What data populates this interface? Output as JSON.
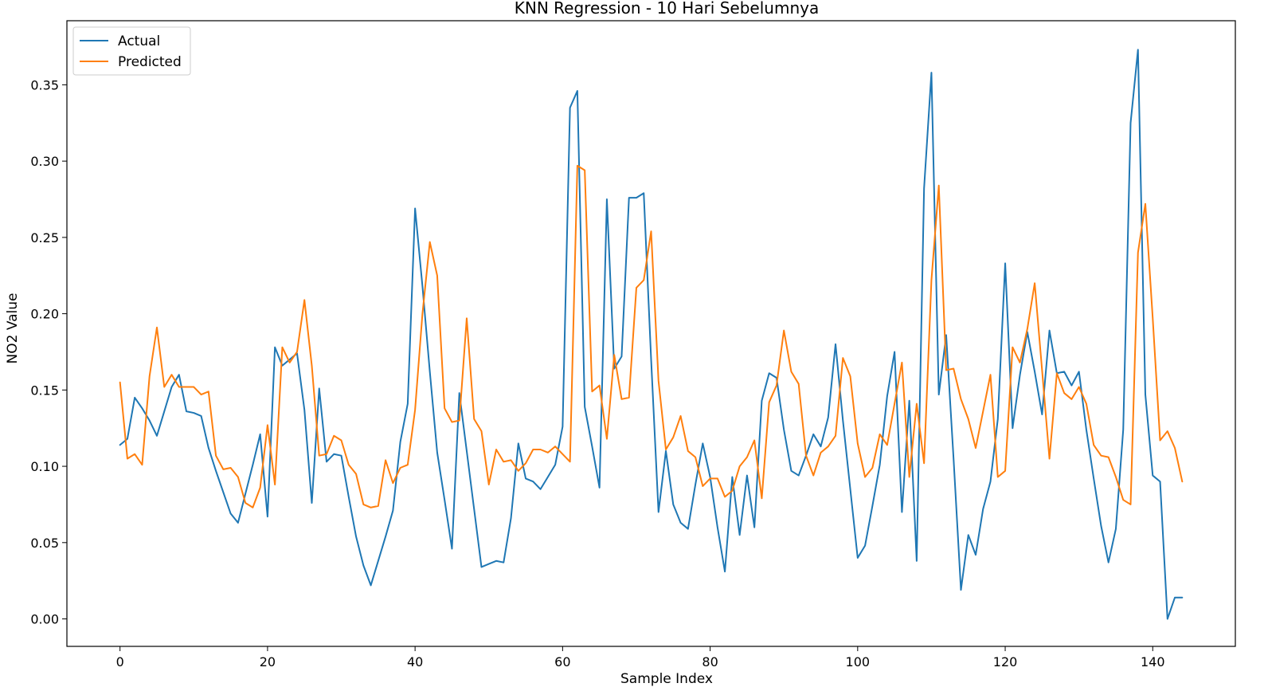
{
  "chart_data": {
    "type": "line",
    "title": "KNN Regression - 10 Hari Sebelumnya",
    "xlabel": "Sample Index",
    "ylabel": "NO2 Value",
    "xlim": [
      -7.2,
      151.2
    ],
    "ylim": [
      -0.018,
      0.392
    ],
    "xticks": [
      0,
      20,
      40,
      60,
      80,
      100,
      120,
      140
    ],
    "xtick_labels": [
      "0",
      "20",
      "40",
      "60",
      "80",
      "100",
      "120",
      "140"
    ],
    "yticks": [
      0.0,
      0.05,
      0.1,
      0.15,
      0.2,
      0.25,
      0.3,
      0.35
    ],
    "ytick_labels": [
      "0.00",
      "0.05",
      "0.10",
      "0.15",
      "0.20",
      "0.25",
      "0.30",
      "0.35"
    ],
    "grid": false,
    "legend_position": "top-left",
    "series": [
      {
        "name": "Actual",
        "color": "#1f77b4",
        "values": [
          0.114,
          0.118,
          0.145,
          0.138,
          0.13,
          0.12,
          0.136,
          0.152,
          0.16,
          0.136,
          0.135,
          0.133,
          0.112,
          0.097,
          0.083,
          0.069,
          0.063,
          0.082,
          0.101,
          0.121,
          0.067,
          0.178,
          0.166,
          0.17,
          0.174,
          0.137,
          0.076,
          0.151,
          0.103,
          0.108,
          0.107,
          0.08,
          0.054,
          0.035,
          0.022,
          0.038,
          0.054,
          0.071,
          0.116,
          0.141,
          0.269,
          0.218,
          0.162,
          0.109,
          0.078,
          0.046,
          0.148,
          0.11,
          0.072,
          0.034,
          0.036,
          0.038,
          0.037,
          0.066,
          0.115,
          0.092,
          0.09,
          0.085,
          0.093,
          0.101,
          0.126,
          0.335,
          0.346,
          0.139,
          0.113,
          0.086,
          0.275,
          0.164,
          0.172,
          0.276,
          0.276,
          0.279,
          0.17,
          0.07,
          0.11,
          0.075,
          0.063,
          0.059,
          0.088,
          0.115,
          0.093,
          0.06,
          0.031,
          0.093,
          0.055,
          0.094,
          0.06,
          0.143,
          0.161,
          0.158,
          0.124,
          0.097,
          0.094,
          0.107,
          0.121,
          0.113,
          0.132,
          0.18,
          0.13,
          0.085,
          0.04,
          0.048,
          0.074,
          0.101,
          0.146,
          0.175,
          0.07,
          0.143,
          0.038,
          0.282,
          0.358,
          0.147,
          0.186,
          0.105,
          0.019,
          0.055,
          0.042,
          0.072,
          0.09,
          0.131,
          0.233,
          0.125,
          0.16,
          0.188,
          0.162,
          0.134,
          0.189,
          0.161,
          0.162,
          0.153,
          0.162,
          0.124,
          0.092,
          0.061,
          0.037,
          0.059,
          0.124,
          0.325,
          0.373,
          0.147,
          0.094,
          0.09,
          0.0,
          0.014,
          0.014
        ]
      },
      {
        "name": "Predicted",
        "color": "#ff7f0e",
        "values": [
          0.155,
          0.105,
          0.108,
          0.101,
          0.159,
          0.191,
          0.152,
          0.16,
          0.152,
          0.152,
          0.152,
          0.147,
          0.149,
          0.107,
          0.098,
          0.099,
          0.093,
          0.076,
          0.073,
          0.086,
          0.127,
          0.088,
          0.178,
          0.168,
          0.175,
          0.209,
          0.166,
          0.107,
          0.108,
          0.12,
          0.117,
          0.101,
          0.095,
          0.075,
          0.073,
          0.074,
          0.104,
          0.089,
          0.099,
          0.101,
          0.137,
          0.2,
          0.247,
          0.225,
          0.138,
          0.129,
          0.13,
          0.197,
          0.131,
          0.123,
          0.088,
          0.111,
          0.103,
          0.104,
          0.097,
          0.102,
          0.111,
          0.111,
          0.109,
          0.113,
          0.108,
          0.103,
          0.297,
          0.294,
          0.149,
          0.153,
          0.118,
          0.173,
          0.144,
          0.145,
          0.217,
          0.222,
          0.254,
          0.156,
          0.111,
          0.119,
          0.133,
          0.11,
          0.106,
          0.087,
          0.092,
          0.092,
          0.08,
          0.084,
          0.1,
          0.106,
          0.117,
          0.079,
          0.142,
          0.153,
          0.189,
          0.162,
          0.154,
          0.107,
          0.094,
          0.109,
          0.113,
          0.12,
          0.171,
          0.159,
          0.115,
          0.093,
          0.099,
          0.121,
          0.114,
          0.141,
          0.168,
          0.093,
          0.141,
          0.102,
          0.222,
          0.284,
          0.163,
          0.164,
          0.144,
          0.131,
          0.112,
          0.136,
          0.16,
          0.093,
          0.097,
          0.178,
          0.168,
          0.19,
          0.22,
          0.163,
          0.105,
          0.161,
          0.148,
          0.144,
          0.152,
          0.141,
          0.114,
          0.107,
          0.106,
          0.093,
          0.078,
          0.075,
          0.24,
          0.272,
          0.197,
          0.117,
          0.123,
          0.112,
          0.09
        ]
      }
    ]
  }
}
